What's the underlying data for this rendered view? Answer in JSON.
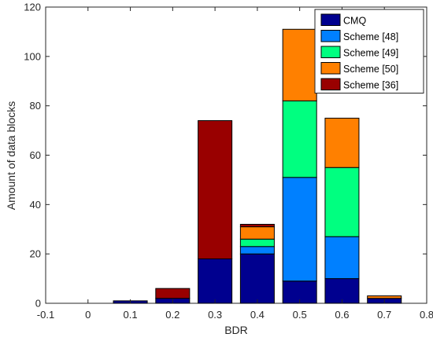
{
  "chart_data": {
    "type": "bar",
    "stacked": true,
    "title": "",
    "xlabel": "BDR",
    "ylabel": "Amount of data blocks",
    "xlim": [
      -0.1,
      0.8
    ],
    "ylim": [
      0,
      120
    ],
    "x_ticks": [
      "-0.1",
      "0",
      "0.1",
      "0.2",
      "0.3",
      "0.4",
      "0.5",
      "0.6",
      "0.7",
      "0.8"
    ],
    "y_ticks": [
      "0",
      "20",
      "40",
      "60",
      "80",
      "100",
      "120"
    ],
    "x": [
      0.1,
      0.2,
      0.3,
      0.4,
      0.5,
      0.6,
      0.7
    ],
    "grid": false,
    "legend_position": "top-right",
    "series": [
      {
        "name": "CMQ",
        "color": "#00008F",
        "values": [
          1,
          2,
          18,
          20,
          9,
          10,
          2
        ]
      },
      {
        "name": "Scheme [48]",
        "color": "#0080FF",
        "values": [
          0,
          0,
          0,
          3,
          42,
          17,
          0
        ]
      },
      {
        "name": "Scheme [49]",
        "color": "#00FF80",
        "values": [
          0,
          0,
          0,
          3,
          31,
          28,
          0
        ]
      },
      {
        "name": "Scheme [50]",
        "color": "#FF8000",
        "values": [
          0,
          0,
          0,
          5,
          29,
          20,
          1
        ]
      },
      {
        "name": "Scheme [36]",
        "color": "#990000",
        "values": [
          0,
          4,
          56,
          1,
          0,
          0,
          0
        ]
      }
    ]
  }
}
